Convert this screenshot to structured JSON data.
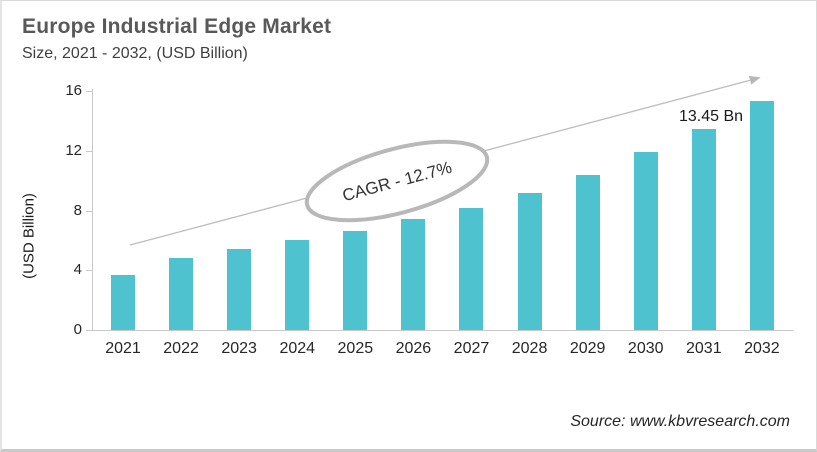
{
  "header": {
    "title": "Europe Industrial Edge Market",
    "subtitle": "Size, 2021 - 2032, (USD Billion)"
  },
  "chart_data": {
    "type": "bar",
    "title": "Europe Industrial Edge Market",
    "subtitle": "Size, 2021 - 2032, (USD Billion)",
    "categories": [
      "2021",
      "2022",
      "2023",
      "2024",
      "2025",
      "2026",
      "2027",
      "2028",
      "2029",
      "2030",
      "2031",
      "2032"
    ],
    "values": [
      3.7,
      4.8,
      5.4,
      6.0,
      6.6,
      7.4,
      8.2,
      9.2,
      10.4,
      11.9,
      13.45,
      15.3
    ],
    "unit": "USD Billion",
    "ylabel": "(USD Billion)",
    "yticks": [
      0,
      4,
      8,
      12,
      16
    ],
    "ylim": [
      0,
      16
    ],
    "grid": false,
    "legend": "none",
    "bar_color": "#4ec3cf",
    "annotations": {
      "cagr_label": "CAGR - 12.7%",
      "value_label": {
        "text": "13.45 Bn",
        "category": "2031",
        "value": 13.45
      }
    }
  },
  "footer": {
    "source": "Source: www.kbvresearch.com"
  },
  "colors": {
    "bar": "#4ec3cf",
    "axis": "#c9c9c9",
    "arrow": "#b7b7b7",
    "ellipse_stroke": "#b8b8b8",
    "title_text": "#595959"
  }
}
